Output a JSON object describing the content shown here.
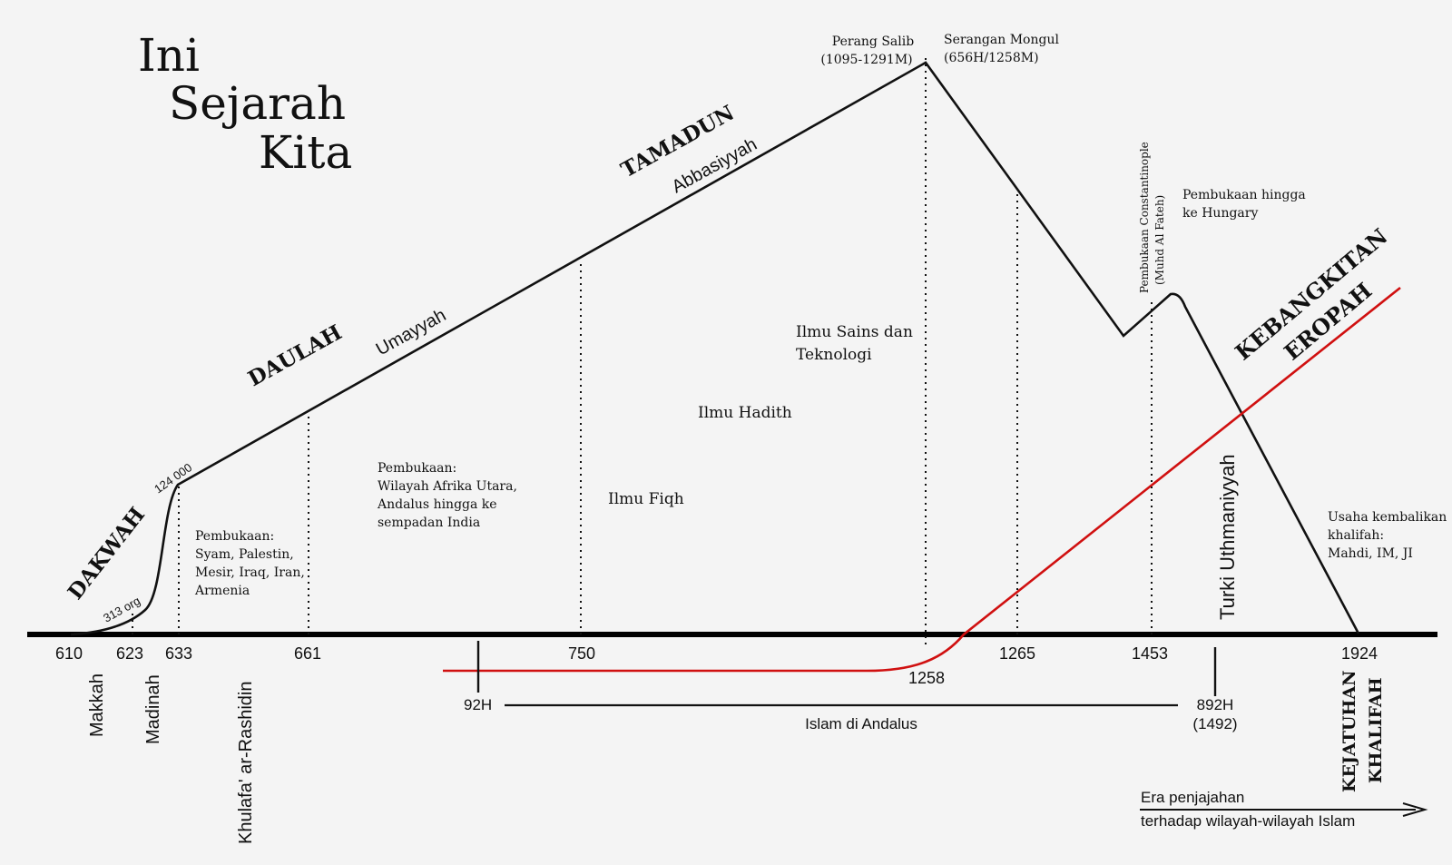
{
  "title": {
    "line1": "Ini",
    "line2": "Sejarah",
    "line3": "Kita"
  },
  "eras": {
    "dakwah": "DAKWAH",
    "daulah": "DAULAH",
    "tamadun": "TAMADUN",
    "kebangkitan1": "KEBANGKITAN",
    "kebangkitan2": "EROPAH",
    "kejatuhan1": "KEJATUHAN",
    "kejatuhan2": "KHALIFAH"
  },
  "dynasties": {
    "umayyah": "Umayyah",
    "abbasiyyah": "Abbasiyyah",
    "uthmaniyyah": "Turki Uthmaniyyah"
  },
  "curve_labels": {
    "org313": "313 org",
    "n124000": "124 000"
  },
  "years": {
    "y610": "610",
    "y623": "623",
    "y633": "633",
    "y661": "661",
    "y750": "750",
    "y1258": "1258",
    "y1265": "1265",
    "y1453": "1453",
    "y1924": "1924"
  },
  "places": {
    "makkah": "Makkah",
    "madinah": "Madinah",
    "khulafa": "Khulafa' ar-Rashidin"
  },
  "notes": {
    "p1": [
      "Pembukaan:",
      "Syam, Palestin,",
      "Mesir, Iraq, Iran,",
      "Armenia"
    ],
    "p2": [
      "Pembukaan:",
      "Wilayah Afrika Utara,",
      "Andalus hingga ke",
      "sempadan India"
    ],
    "fiqh": "Ilmu Fiqh",
    "hadith": "Ilmu Hadith",
    "sains": [
      "Ilmu Sains dan",
      "Teknologi"
    ],
    "salib": [
      "Perang Salib",
      "(1095-1291M)"
    ],
    "mongul": [
      "Serangan Mongul",
      "(656H/1258M)"
    ],
    "constantinople": [
      "Pembukaan Constantinople",
      "(Muhd Al Fateh)"
    ],
    "hungary": [
      "Pembukaan hingga",
      "ke Hungary"
    ],
    "usaha": [
      "Usaha kembalikan",
      "khalifah:",
      "Mahdi, IM, JI"
    ]
  },
  "andalus": {
    "start": "92H",
    "end1": "892H",
    "end2": "(1492)",
    "label": "Islam di Andalus"
  },
  "penjajahan": [
    "Era penjajahan",
    "terhadap wilayah-wilayah Islam"
  ],
  "colors": {
    "line": "#111111",
    "europe": "#d01010",
    "background": "#f4f4f4"
  }
}
